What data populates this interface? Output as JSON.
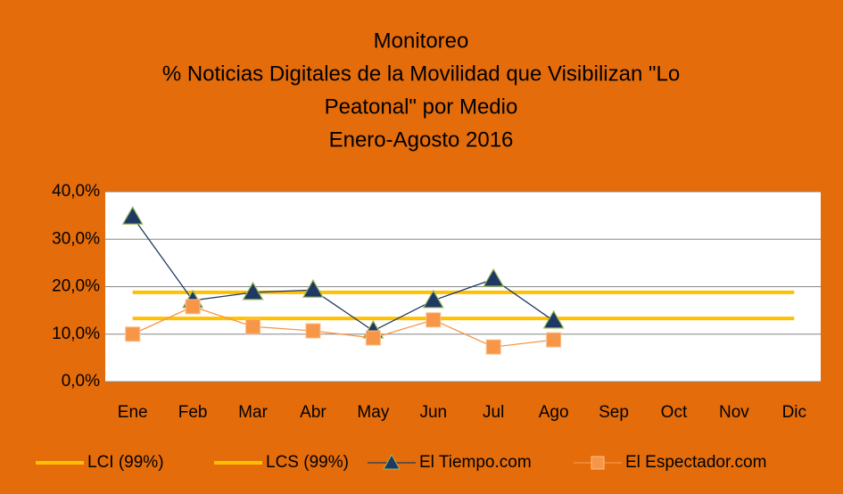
{
  "chart_data": {
    "type": "line",
    "title": [
      "Monitoreo",
      "% Noticias Digitales de la Movilidad que Visibilizan \"Lo",
      "Peatonal\" por Medio",
      "Enero-Agosto 2016"
    ],
    "categories": [
      "Ene",
      "Feb",
      "Mar",
      "Abr",
      "May",
      "Jun",
      "Jul",
      "Ago",
      "Sep",
      "Oct",
      "Nov",
      "Dic"
    ],
    "ylim": [
      0,
      40
    ],
    "yticks": [
      {
        "value": 0,
        "label": "0,0%"
      },
      {
        "value": 10,
        "label": "10,0%"
      },
      {
        "value": 20,
        "label": "20,0%"
      },
      {
        "value": 30,
        "label": "30,0%"
      },
      {
        "value": 40,
        "label": "40,0%"
      }
    ],
    "grid": true,
    "legend": "bottom",
    "series": [
      {
        "name": "LCI (99%)",
        "color": "#ffc000",
        "marker": "none",
        "values": [
          13.3,
          13.3,
          13.3,
          13.3,
          13.3,
          13.3,
          13.3,
          13.3,
          13.3,
          13.3,
          13.3,
          13.3
        ]
      },
      {
        "name": "LCS (99%)",
        "color": "#ffc000",
        "marker": "none",
        "values": [
          18.8,
          18.8,
          18.8,
          18.8,
          18.8,
          18.8,
          18.8,
          18.8,
          18.8,
          18.8,
          18.8,
          18.8
        ]
      },
      {
        "name": "El Tiempo.com",
        "color": "#1f3864",
        "marker": "triangle",
        "values": [
          34.7,
          17.1,
          18.8,
          19.3,
          10.7,
          17.1,
          21.6,
          12.8,
          null,
          null,
          null,
          null
        ]
      },
      {
        "name": "El Espectador.com",
        "color": "#f79646",
        "marker": "square",
        "values": [
          10.0,
          15.8,
          11.6,
          10.7,
          9.2,
          13.0,
          7.3,
          8.8,
          null,
          null,
          null,
          null
        ]
      }
    ]
  }
}
